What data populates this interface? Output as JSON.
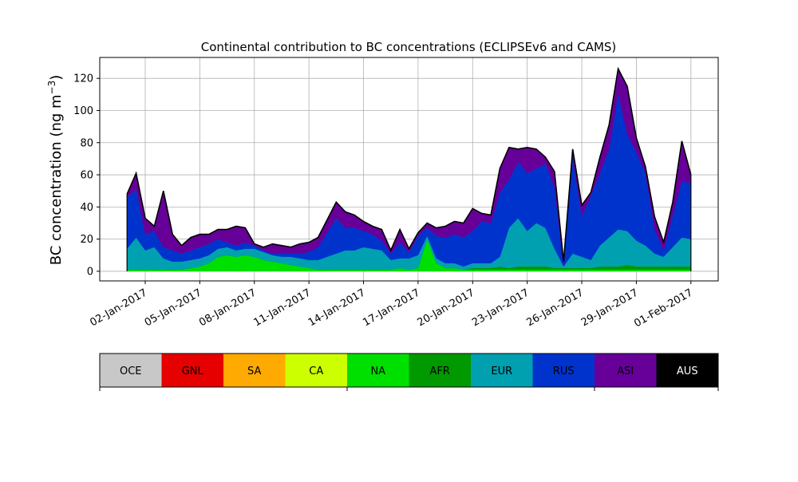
{
  "chart_data": {
    "type": "area",
    "stacked": true,
    "title": "Continental contribution to BC concentrations (ECLIPSEv6 and CAMS)",
    "ylabel_main": "BC concentration (ng m",
    "ylabel_sup": "−3",
    "ylabel_close": ")",
    "xlabel": "",
    "x_unit": "date",
    "xlim": [
      "2016-12-30T12:00",
      "2017-02-02T12:00"
    ],
    "ylim": [
      -6,
      133
    ],
    "grid": true,
    "legend": "colorbar-below",
    "yticks": [
      0,
      20,
      40,
      60,
      80,
      100,
      120
    ],
    "xticks": [
      {
        "date": "2017-01-02",
        "label": "02-Jan-2017"
      },
      {
        "date": "2017-01-05",
        "label": "05-Jan-2017"
      },
      {
        "date": "2017-01-08",
        "label": "08-Jan-2017"
      },
      {
        "date": "2017-01-11",
        "label": "11-Jan-2017"
      },
      {
        "date": "2017-01-14",
        "label": "14-Jan-2017"
      },
      {
        "date": "2017-01-17",
        "label": "17-Jan-2017"
      },
      {
        "date": "2017-01-20",
        "label": "20-Jan-2017"
      },
      {
        "date": "2017-01-23",
        "label": "23-Jan-2017"
      },
      {
        "date": "2017-01-26",
        "label": "26-Jan-2017"
      },
      {
        "date": "2017-01-29",
        "label": "29-Jan-2017"
      },
      {
        "date": "2017-02-01",
        "label": "01-Feb-2017"
      }
    ],
    "x": [
      "2017-01-01T00:00",
      "2017-01-01T12:00",
      "2017-01-02T00:00",
      "2017-01-02T12:00",
      "2017-01-03T00:00",
      "2017-01-03T12:00",
      "2017-01-04T00:00",
      "2017-01-04T12:00",
      "2017-01-05T00:00",
      "2017-01-05T12:00",
      "2017-01-06T00:00",
      "2017-01-06T12:00",
      "2017-01-07T00:00",
      "2017-01-07T12:00",
      "2017-01-08T00:00",
      "2017-01-08T12:00",
      "2017-01-09T00:00",
      "2017-01-09T12:00",
      "2017-01-10T00:00",
      "2017-01-10T12:00",
      "2017-01-11T00:00",
      "2017-01-11T12:00",
      "2017-01-12T00:00",
      "2017-01-12T12:00",
      "2017-01-13T00:00",
      "2017-01-13T12:00",
      "2017-01-14T00:00",
      "2017-01-14T12:00",
      "2017-01-15T00:00",
      "2017-01-15T12:00",
      "2017-01-16T00:00",
      "2017-01-16T12:00",
      "2017-01-17T00:00",
      "2017-01-17T12:00",
      "2017-01-18T00:00",
      "2017-01-18T12:00",
      "2017-01-19T00:00",
      "2017-01-19T12:00",
      "2017-01-20T00:00",
      "2017-01-20T12:00",
      "2017-01-21T00:00",
      "2017-01-21T12:00",
      "2017-01-22T00:00",
      "2017-01-22T12:00",
      "2017-01-23T00:00",
      "2017-01-23T12:00",
      "2017-01-24T00:00",
      "2017-01-24T12:00",
      "2017-01-25T00:00",
      "2017-01-25T12:00",
      "2017-01-26T00:00",
      "2017-01-26T12:00",
      "2017-01-27T00:00",
      "2017-01-27T12:00",
      "2017-01-28T00:00",
      "2017-01-28T12:00",
      "2017-01-29T00:00",
      "2017-01-29T12:00",
      "2017-01-30T00:00",
      "2017-01-30T12:00",
      "2017-01-31T00:00",
      "2017-01-31T12:00",
      "2017-02-01T00:00"
    ],
    "series": [
      {
        "name": "OCE",
        "color": "#c8c8c8",
        "values": [
          0,
          0,
          0,
          0,
          0,
          0,
          0,
          0,
          0,
          0,
          0,
          0,
          0,
          0,
          0,
          0,
          0,
          0,
          0,
          0,
          0,
          0,
          0,
          0,
          0,
          0,
          0,
          0,
          0,
          0,
          0,
          0,
          0,
          0,
          0,
          0,
          0,
          0,
          0,
          0,
          0,
          0,
          0,
          0,
          0,
          0,
          0,
          0,
          0,
          0,
          0,
          0,
          0,
          0,
          0,
          0,
          0,
          0,
          0,
          0,
          0,
          0,
          0
        ]
      },
      {
        "name": "GNL",
        "color": "#e60000",
        "values": [
          0,
          0,
          0,
          0,
          0,
          0,
          0,
          0,
          0,
          0,
          0,
          0,
          0,
          0,
          0,
          0,
          0,
          0,
          0,
          0,
          0,
          0,
          0,
          0,
          0,
          0,
          0,
          0,
          0,
          0,
          0,
          0,
          0,
          0,
          0,
          0,
          0,
          0,
          0,
          0,
          0,
          0,
          0,
          0,
          0,
          0,
          0,
          0,
          0,
          0,
          0,
          0,
          0,
          0,
          0,
          0,
          0,
          0,
          0,
          0,
          0,
          0,
          0
        ]
      },
      {
        "name": "SA",
        "color": "#ffaa00",
        "values": [
          0,
          0,
          0,
          0,
          0,
          0,
          0,
          0,
          0,
          0,
          0,
          0,
          0,
          0,
          0,
          0,
          0,
          0,
          0,
          0,
          0,
          0,
          0,
          0,
          0,
          0,
          0,
          0,
          0,
          0,
          0,
          0,
          0,
          0,
          0,
          0,
          0,
          0,
          0,
          0,
          0,
          0,
          0,
          0,
          0,
          0,
          0,
          0,
          0,
          0,
          0,
          0,
          0,
          0,
          0,
          0,
          0,
          0,
          0,
          0,
          0,
          0,
          0
        ]
      },
      {
        "name": "CA",
        "color": "#ccff00",
        "values": [
          0,
          0,
          0,
          0,
          0,
          0,
          0,
          0,
          0,
          0,
          0,
          0,
          0,
          0,
          0,
          0,
          0,
          0,
          0,
          0,
          0,
          0,
          0,
          0,
          0,
          0,
          0,
          0,
          0,
          0,
          0,
          0,
          0,
          0,
          0,
          0,
          0,
          0,
          0,
          0,
          0,
          0,
          0,
          0,
          0,
          0,
          0,
          0,
          0,
          0,
          0,
          0,
          0,
          0,
          0,
          0,
          0,
          0,
          0,
          0,
          0,
          0,
          0
        ]
      },
      {
        "name": "NA",
        "color": "#00e000",
        "values": [
          1,
          1,
          1,
          1,
          1,
          1,
          1,
          2,
          3,
          5,
          9,
          10,
          9,
          10,
          9,
          7,
          6,
          5,
          4,
          3,
          2,
          1,
          1,
          1,
          1,
          1,
          1,
          1,
          1,
          1,
          2,
          1,
          2,
          20,
          5,
          2,
          2,
          1,
          1,
          1,
          1,
          1,
          1,
          1,
          1,
          1,
          1,
          1,
          1,
          1,
          1,
          1,
          1,
          1,
          1,
          1,
          1,
          1,
          1,
          1,
          1,
          1,
          1
        ]
      },
      {
        "name": "AFR",
        "color": "#009900",
        "values": [
          0,
          0,
          0,
          0,
          0,
          0,
          0,
          0,
          0,
          0,
          0,
          0,
          0,
          0,
          0,
          0,
          0,
          0,
          0,
          0,
          0,
          0,
          0,
          0,
          0,
          0,
          0,
          0,
          0,
          0,
          0,
          0,
          0,
          0,
          0,
          0,
          0,
          0,
          1,
          1,
          1,
          2,
          1,
          2,
          2,
          2,
          2,
          1,
          1,
          1,
          1,
          1,
          2,
          2,
          2,
          3,
          2,
          2,
          2,
          2,
          2,
          2,
          2
        ]
      },
      {
        "name": "EUR",
        "color": "#00a0b0",
        "values": [
          13,
          20,
          12,
          14,
          7,
          5,
          5,
          5,
          5,
          5,
          5,
          5,
          4,
          4,
          5,
          5,
          4,
          4,
          5,
          5,
          5,
          6,
          8,
          10,
          12,
          12,
          14,
          13,
          12,
          6,
          6,
          7,
          8,
          2,
          3,
          3,
          3,
          2,
          3,
          3,
          3,
          6,
          25,
          30,
          22,
          27,
          24,
          12,
          1,
          9,
          7,
          5,
          13,
          18,
          23,
          21,
          16,
          13,
          8,
          6,
          12,
          18,
          17
        ]
      },
      {
        "name": "RUS",
        "color": "#0033cc",
        "values": [
          32,
          30,
          10,
          10,
          7,
          7,
          5,
          6,
          7,
          7,
          6,
          3,
          3,
          4,
          2,
          1,
          1,
          2,
          2,
          3,
          5,
          8,
          15,
          22,
          14,
          14,
          10,
          9,
          6,
          4,
          10,
          4,
          12,
          5,
          14,
          16,
          18,
          18,
          20,
          26,
          25,
          40,
          30,
          35,
          36,
          34,
          40,
          38,
          0,
          60,
          25,
          40,
          45,
          55,
          85,
          60,
          55,
          45,
          15,
          4,
          20,
          35,
          35
        ]
      },
      {
        "name": "ASI",
        "color": "#660099",
        "values": [
          2,
          10,
          10,
          3,
          35,
          10,
          5,
          8,
          8,
          6,
          6,
          8,
          12,
          9,
          1,
          2,
          6,
          5,
          4,
          6,
          6,
          6,
          8,
          10,
          10,
          8,
          6,
          5,
          7,
          2,
          8,
          2,
          2,
          3,
          5,
          7,
          8,
          9,
          14,
          5,
          5,
          15,
          20,
          8,
          16,
          12,
          4,
          10,
          3,
          5,
          7,
          2,
          10,
          15,
          15,
          30,
          9,
          4,
          8,
          5,
          8,
          25,
          5
        ]
      },
      {
        "name": "AUS",
        "color": "#000000",
        "values": [
          0,
          0,
          0,
          0,
          0,
          0,
          0,
          0,
          0,
          0,
          0,
          0,
          0,
          0,
          0,
          0,
          0,
          0,
          0,
          0,
          0,
          0,
          0,
          0,
          0,
          0,
          0,
          0,
          0,
          0,
          0,
          0,
          0,
          0,
          0,
          0,
          0,
          0,
          0,
          0,
          0,
          0,
          0,
          0,
          0,
          0,
          0,
          0,
          0,
          0,
          0,
          0,
          0,
          0,
          0,
          0,
          0,
          0,
          0,
          0,
          0,
          0,
          0
        ]
      }
    ]
  }
}
